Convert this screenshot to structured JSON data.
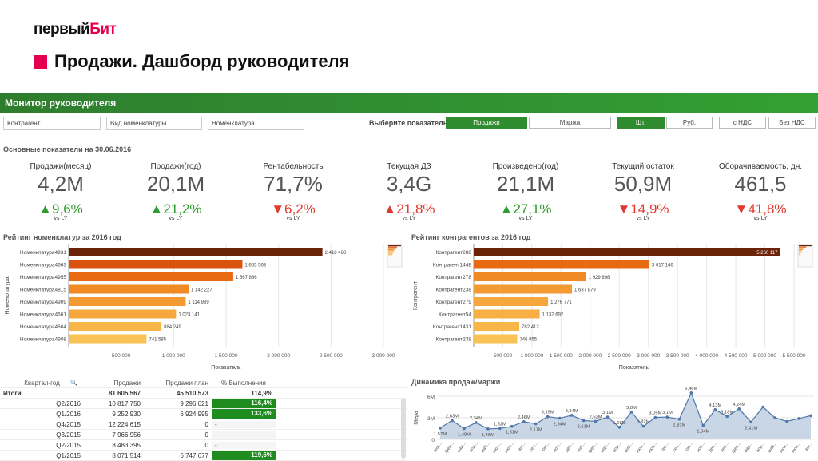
{
  "logo": {
    "text_a": "первый",
    "text_b": "Бит"
  },
  "page_title": "Продажи. Дашборд руководителя",
  "monitor_title": "Монитор руководителя",
  "filters": [
    "Контрагент",
    "Вид номенклатуры",
    "Номенклатура"
  ],
  "selector": {
    "label": "Выберите показатель",
    "indicator": [
      "Продажи",
      "Маржа"
    ],
    "units": [
      "Шт.",
      "Руб."
    ],
    "vat": [
      "с НДС",
      "Без НДС"
    ],
    "active": {
      "indicator": "Продажи",
      "units": "Шт."
    }
  },
  "kpi_section_title": "Основные показатели на 30.06.2016",
  "kpis": [
    {
      "name": "Продажи(месяц)",
      "value": "4,2M",
      "change": "9,6%",
      "dir": "up",
      "vs": "vs LY"
    },
    {
      "name": "Продажи(год)",
      "value": "20,1M",
      "change": "21,2%",
      "dir": "up",
      "vs": "vs LY"
    },
    {
      "name": "Рентабельность",
      "value": "71,7%",
      "change": "6,2%",
      "dir": "down",
      "vs": "vs LY"
    },
    {
      "name": "Текущая ДЗ",
      "value": "3,4G",
      "change": "21,8%",
      "dir": "up_red",
      "vs": "vs LY"
    },
    {
      "name": "Произведено(год)",
      "value": "21,1M",
      "change": "27,1%",
      "dir": "up",
      "vs": "vs LY"
    },
    {
      "name": "Текущий остаток",
      "value": "50,9M",
      "change": "14,9%",
      "dir": "down",
      "vs": "vs LY"
    },
    {
      "name": "Оборачиваемость, дн.",
      "value": "461,5",
      "change": "41,8%",
      "dir": "down",
      "vs": "vs LY"
    }
  ],
  "chart_data": [
    {
      "type": "bar",
      "title": "Рейтинг номенклатур за 2016 год",
      "xlabel": "Показатель",
      "ylabel": "Номенклатура",
      "categories": [
        "Номенклатура4931",
        "Номенклатура4663",
        "Номенклатура4955",
        "Номенклатура4815",
        "Номенклатура4909",
        "Номенклатура4661",
        "Номенклатура4664",
        "Номенклатура4908"
      ],
      "values": [
        2418466,
        1655563,
        1567866,
        1142227,
        1114989,
        1023141,
        884249,
        741585
      ],
      "value_labels": [
        "2 418 466",
        "1 655 563",
        "1 567 866",
        "1 142 227",
        "1 114 989",
        "1 023 141",
        "884 249",
        "741 585"
      ],
      "xticks": [
        "500 000",
        "1 000 000",
        "1 500 000",
        "2 000 000",
        "2 500 000",
        "3 000 000"
      ],
      "xlim": [
        0,
        3000000
      ],
      "colors": [
        "#6b2308",
        "#d9530f",
        "#e86a12",
        "#f08a25",
        "#f39a33",
        "#f6a83f",
        "#f8b648",
        "#f9c255"
      ]
    },
    {
      "type": "bar",
      "title": "Рейтинг контрагентов за 2016 год",
      "xlabel": "Показатель",
      "ylabel": "Контрагент",
      "categories": [
        "Контрагент288",
        "Контрагент1448",
        "Контрагент278",
        "Контрагент238",
        "Контрагент279",
        "Контрагент54",
        "Контрагент1431",
        "Контрагент238"
      ],
      "values": [
        5260117,
        3017146,
        1929898,
        1687879,
        1276771,
        1132692,
        782412,
        746955
      ],
      "value_labels": [
        "5 260 117",
        "3 017 146",
        "1 929 898",
        "1 687 879",
        "1 276 771",
        "1 132 692",
        "782 412",
        "746 955"
      ],
      "xticks": [
        "500 000",
        "1 000 000",
        "1 500 000",
        "2 000 000",
        "2 500 000",
        "3 000 000",
        "3 500 000",
        "4 000 000",
        "4 500 000",
        "5 000 000",
        "5 500 000"
      ],
      "xlim": [
        0,
        5500000
      ],
      "colors": [
        "#6b2308",
        "#e86a12",
        "#f08a25",
        "#f39a33",
        "#f6a83f",
        "#f7b045",
        "#f8b648",
        "#f9c255"
      ]
    },
    {
      "type": "area",
      "title": "Динамика продаж/маржи",
      "ylabel": "Мера",
      "yticks": [
        "0",
        "3M",
        "6M"
      ],
      "ylim": [
        0,
        6000000
      ],
      "x": [
        "янв...",
        "фев...",
        "мар...",
        "апр...",
        "май...",
        "июн...",
        "июл...",
        "авг...",
        "сен...",
        "окт...",
        "ноя...",
        "дек...",
        "янв...",
        "фев...",
        "мар...",
        "апр...",
        "май...",
        "июн...",
        "июл...",
        "авг...",
        "сен...",
        "окт...",
        "ноя...",
        "дек...",
        "янв...",
        "фев...",
        "мар...",
        "апр...",
        "май...",
        "июн...",
        "июл...",
        "авг..."
      ],
      "values": [
        1570000,
        2630000,
        1490000,
        2340000,
        1460000,
        1520000,
        1810000,
        2460000,
        2170000,
        3150000,
        2940000,
        3340000,
        2610000,
        2520000,
        3100000,
        1680000,
        3800000,
        1820000,
        3050000,
        3100000,
        2810000,
        6460000,
        1940000,
        4130000,
        3180000,
        4240000,
        2410000,
        4500000,
        3000000,
        2500000,
        2900000,
        3300000
      ],
      "point_labels": [
        "1,57M",
        "2,63M",
        "1,49M",
        "2,34M",
        "1,46M",
        "1,52M",
        "1,81M",
        "2,46M",
        "2,17M",
        "3,15M",
        "2,94M",
        "3,34M",
        "2,61M",
        "2,52M",
        "3,1M",
        "1,68M",
        "3,8M",
        "1,82M",
        "3,05M",
        "3,1M",
        "2,81M",
        "6,46M",
        "1,94M",
        "4,13M",
        "3,18M",
        "4,24M",
        "2,41M",
        "",
        "",
        "",
        "",
        ""
      ]
    }
  ],
  "table": {
    "headers": [
      "Квартал-год",
      "Продажи",
      "Продажи план",
      "% Выполнения"
    ],
    "totals": {
      "label": "Итоги",
      "sales": "81 605 567",
      "plan": "45 510 573",
      "pct": "114,9%"
    },
    "rows": [
      {
        "q": "Q2/2016",
        "sales": "10 817 750",
        "plan": "9 296 021",
        "pct": "116,4%",
        "hl": true
      },
      {
        "q": "Q1/2016",
        "sales": "9 252 930",
        "plan": "6 924 995",
        "pct": "133,6%",
        "hl": true
      },
      {
        "q": "Q4/2015",
        "sales": "12 224 615",
        "plan": "0",
        "pct": "-",
        "hl": false
      },
      {
        "q": "Q3/2015",
        "sales": "7 966 956",
        "plan": "0",
        "pct": "-",
        "hl": false
      },
      {
        "q": "Q2/2015",
        "sales": "8 483 395",
        "plan": "0",
        "pct": "-",
        "hl": false
      },
      {
        "q": "Q1/2015",
        "sales": "8 071 514",
        "plan": "6 747 677",
        "pct": "119,6%",
        "hl": true
      }
    ]
  }
}
